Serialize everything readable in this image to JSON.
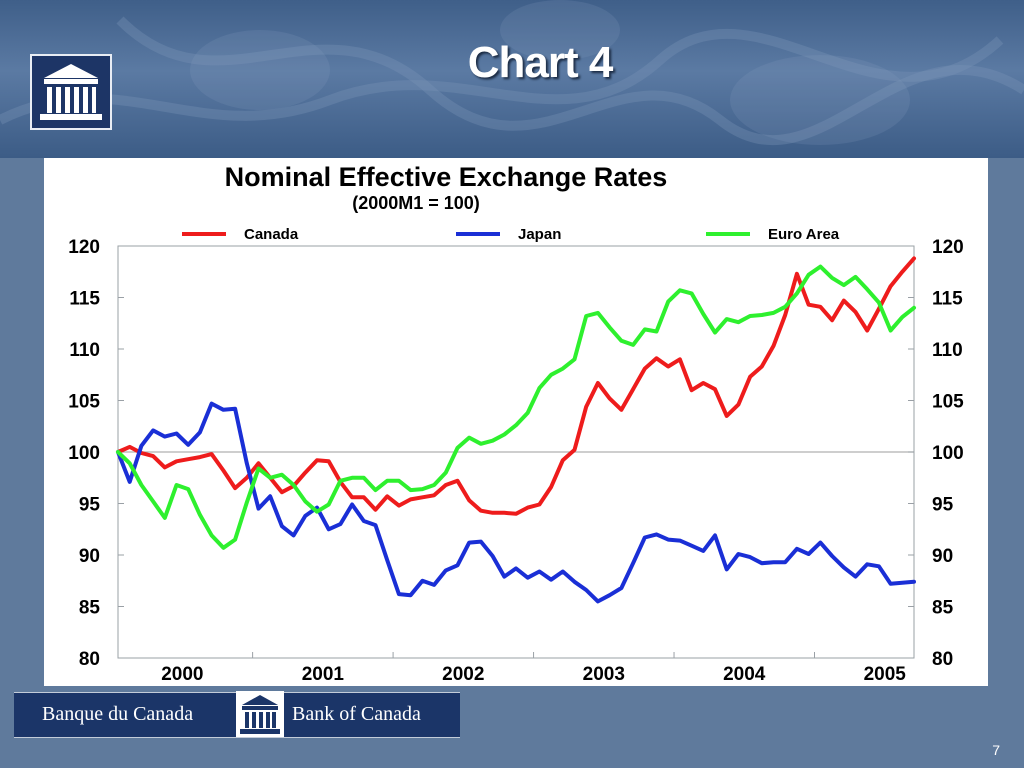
{
  "slide": {
    "title": "Chart 4",
    "page_number": "7",
    "footer": {
      "left_text": "Banque du Canada",
      "right_text": "Bank of Canada"
    }
  },
  "chart_data": {
    "type": "line",
    "title": "Nominal Effective Exchange Rates",
    "subtitle": "(2000M1 = 100)",
    "xlabel": "",
    "ylabel": "",
    "ylim": [
      80,
      120
    ],
    "yticks": [
      120,
      115,
      110,
      105,
      100,
      95,
      90,
      85,
      80
    ],
    "xticks": [
      "2000",
      "2001",
      "2002",
      "2003",
      "2004",
      "2005"
    ],
    "xlim": [
      0,
      68
    ],
    "legend_position": "top",
    "reference_line": 100,
    "x": [
      0,
      1,
      2,
      3,
      4,
      5,
      6,
      7,
      8,
      9,
      10,
      11,
      12,
      13,
      14,
      15,
      16,
      17,
      18,
      19,
      20,
      21,
      22,
      23,
      24,
      25,
      26,
      27,
      28,
      29,
      30,
      31,
      32,
      33,
      34,
      35,
      36,
      37,
      38,
      39,
      40,
      41,
      42,
      43,
      44,
      45,
      46,
      47,
      48,
      49,
      50,
      51,
      52,
      53,
      54,
      55,
      56,
      57,
      58,
      59,
      60,
      61,
      62,
      63,
      64,
      65,
      66,
      67,
      68
    ],
    "series": [
      {
        "name": "Canada",
        "color": "#ee1c1c",
        "values": [
          100,
          100.5,
          99.9,
          99.6,
          98.5,
          99.1,
          99.3,
          99.5,
          99.8,
          98.2,
          96.5,
          97.5,
          98.9,
          97.5,
          96.1,
          96.7,
          98.0,
          99.2,
          99.1,
          97.1,
          95.6,
          95.6,
          94.4,
          95.7,
          94.8,
          95.4,
          95.6,
          95.8,
          96.8,
          97.2,
          95.3,
          94.3,
          94.1,
          94.1,
          94.0,
          94.6,
          94.9,
          96.6,
          99.2,
          100.2,
          104.4,
          106.7,
          105.2,
          104.1,
          106.1,
          108.1,
          109.1,
          108.3,
          109.0,
          106.0,
          106.7,
          106.1,
          103.5,
          104.6,
          107.3,
          108.3,
          110.3,
          113.3,
          117.3,
          114.3,
          114.1,
          112.8,
          114.7,
          113.6,
          111.8,
          113.9,
          116.1,
          117.5,
          118.8
        ]
      },
      {
        "name": "Japan",
        "color": "#1a2fd6",
        "values": [
          100,
          97.1,
          100.6,
          102.1,
          101.5,
          101.8,
          100.7,
          101.9,
          104.7,
          104.1,
          104.2,
          98.9,
          94.5,
          95.7,
          92.8,
          91.9,
          93.8,
          94.6,
          92.5,
          93.0,
          94.9,
          93.3,
          92.9,
          89.5,
          86.2,
          86.1,
          87.5,
          87.1,
          88.5,
          89.0,
          91.2,
          91.3,
          89.9,
          87.9,
          88.7,
          87.8,
          88.4,
          87.6,
          88.4,
          87.4,
          86.6,
          85.5,
          86.1,
          86.8,
          89.2,
          91.7,
          92.0,
          91.5,
          91.4,
          90.9,
          90.4,
          91.9,
          88.6,
          90.1,
          89.8,
          89.2,
          89.3,
          89.3,
          90.6,
          90.1,
          91.2,
          89.9,
          88.8,
          87.9,
          89.1,
          88.9,
          87.2,
          87.3,
          87.4
        ]
      },
      {
        "name": "Euro Area",
        "color": "#2ef02e",
        "values": [
          100,
          98.9,
          96.8,
          95.2,
          93.6,
          96.8,
          96.4,
          93.9,
          91.9,
          90.7,
          91.5,
          95.1,
          98.4,
          97.5,
          97.8,
          96.8,
          95.2,
          94.2,
          94.9,
          97.2,
          97.5,
          97.5,
          96.3,
          97.2,
          97.2,
          96.3,
          96.4,
          96.8,
          98.0,
          100.4,
          101.4,
          100.8,
          101.1,
          101.7,
          102.6,
          103.8,
          106.2,
          107.5,
          108.1,
          109.0,
          113.2,
          113.5,
          112.1,
          110.8,
          110.4,
          111.9,
          111.7,
          114.6,
          115.7,
          115.4,
          113.4,
          111.6,
          112.9,
          112.6,
          113.2,
          113.3,
          113.5,
          114.1,
          115.4,
          117.2,
          118.0,
          116.9,
          116.2,
          117.0,
          115.8,
          114.5,
          111.8,
          113.1,
          114.0
        ]
      }
    ]
  }
}
